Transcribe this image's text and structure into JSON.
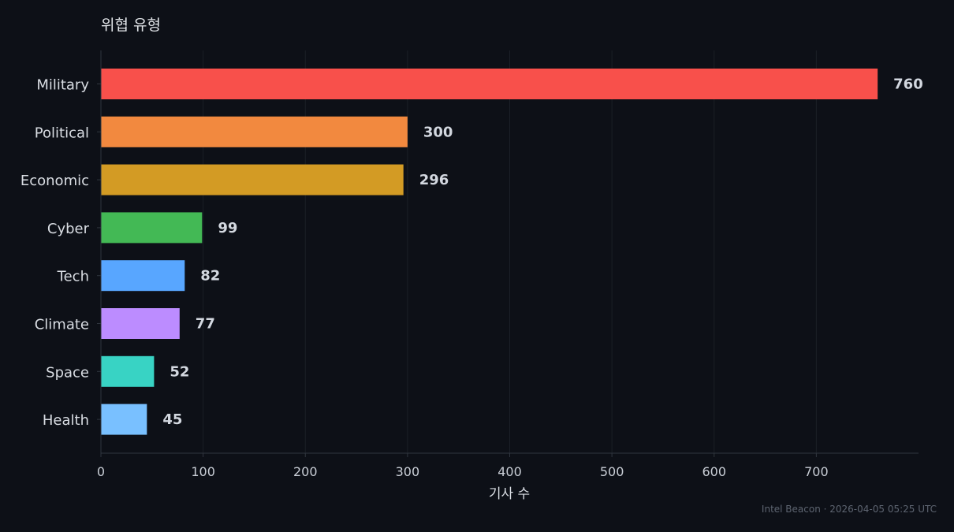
{
  "chart_data": {
    "type": "bar",
    "orientation": "horizontal",
    "title": "위협 유형",
    "xlabel": "기사 수",
    "ylabel": "",
    "categories": [
      "Military",
      "Political",
      "Economic",
      "Cyber",
      "Tech",
      "Climate",
      "Space",
      "Health"
    ],
    "values": [
      760,
      300,
      296,
      99,
      82,
      77,
      52,
      45
    ],
    "colors": [
      "#f8504b",
      "#f2893f",
      "#d39b24",
      "#43b955",
      "#58a6ff",
      "#bc8cff",
      "#38d3c4",
      "#79c0ff"
    ],
    "xlim": [
      0,
      800
    ],
    "xticks": [
      0,
      100,
      200,
      300,
      400,
      500,
      600,
      700
    ],
    "grid": true,
    "legend": "none"
  },
  "footer": "Intel Beacon · 2026-04-05 05:25 UTC",
  "theme": {
    "background": "#0d1017",
    "grid": "#1b1f27",
    "axis": "#30363f"
  }
}
